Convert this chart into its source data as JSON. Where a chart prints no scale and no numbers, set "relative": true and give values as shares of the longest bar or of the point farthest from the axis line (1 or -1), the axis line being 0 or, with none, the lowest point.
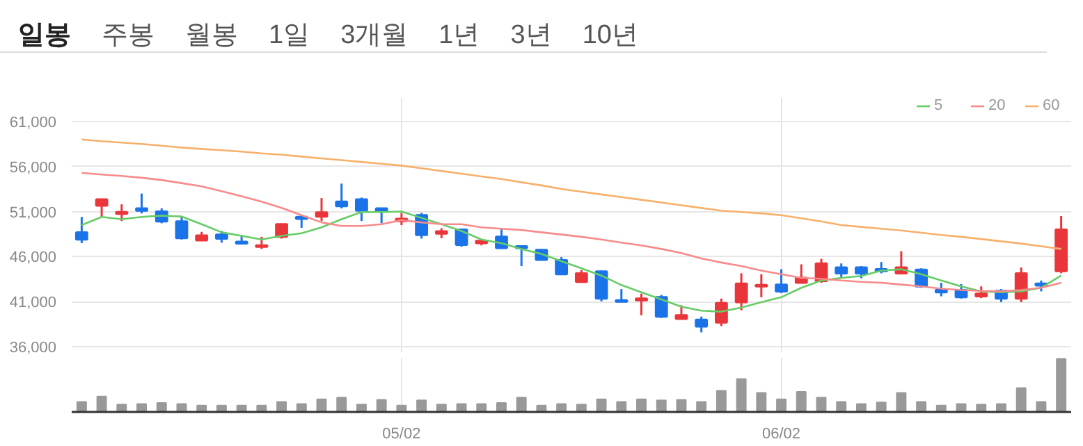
{
  "chart_data": [
    {
      "type": "candlestick",
      "annotations": [
        "일봉",
        "주봉",
        "월봉",
        "1일",
        "3개월",
        "1년",
        "3년",
        "10년"
      ],
      "ohlc": [
        [
          48700,
          50400,
          47500,
          47900
        ],
        [
          51650,
          52350,
          50400,
          52350
        ],
        [
          50750,
          51800,
          49950,
          50950
        ],
        [
          51350,
          53000,
          50800,
          51100
        ],
        [
          51000,
          51350,
          49700,
          49900
        ],
        [
          49900,
          50400,
          47900,
          48050
        ],
        [
          47800,
          48750,
          47800,
          48350
        ],
        [
          48450,
          48850,
          47550,
          48000
        ],
        [
          47650,
          48400,
          47450,
          47450
        ],
        [
          47100,
          48200,
          46850,
          47250
        ],
        [
          48200,
          49650,
          48000,
          49600
        ],
        [
          50400,
          50600,
          49200,
          50200
        ],
        [
          50450,
          52500,
          49950,
          50900
        ],
        [
          52100,
          54100,
          51350,
          51600
        ],
        [
          52350,
          52550,
          49950,
          51100
        ],
        [
          51350,
          51350,
          49700,
          51050
        ],
        [
          49950,
          50850,
          49500,
          50200
        ],
        [
          50600,
          50850,
          48000,
          48400
        ],
        [
          48550,
          49150,
          48050,
          48800
        ],
        [
          49000,
          49100,
          47100,
          47300
        ],
        [
          47500,
          47750,
          47250,
          47750
        ],
        [
          48200,
          49150,
          46950,
          46950
        ],
        [
          47150,
          47150,
          44950,
          46950
        ],
        [
          46750,
          46850,
          45650,
          45650
        ],
        [
          45600,
          45950,
          44050,
          44050
        ],
        [
          43200,
          44500,
          43100,
          44150
        ],
        [
          44350,
          44450,
          41050,
          41350
        ],
        [
          41150,
          42400,
          41000,
          41000
        ],
        [
          41150,
          41900,
          39500,
          41350
        ],
        [
          41500,
          41750,
          39200,
          39350
        ],
        [
          39100,
          40600,
          39100,
          39500
        ],
        [
          39000,
          39350,
          37600,
          38250
        ],
        [
          38700,
          41350,
          38300,
          40850
        ],
        [
          40950,
          44150,
          40050,
          43000
        ],
        [
          42700,
          44050,
          41500,
          42850
        ],
        [
          42900,
          44600,
          41950,
          42150
        ],
        [
          43100,
          45150,
          43100,
          43650
        ],
        [
          43300,
          45750,
          43100,
          45250
        ],
        [
          44800,
          45250,
          43600,
          44150
        ],
        [
          44800,
          44950,
          43600,
          44150
        ],
        [
          44600,
          45400,
          44150,
          44400
        ],
        [
          44150,
          46600,
          44150,
          44800
        ],
        [
          44550,
          44700,
          42550,
          42700
        ],
        [
          42300,
          43100,
          41600,
          42050
        ],
        [
          42300,
          42950,
          41350,
          41500
        ],
        [
          41600,
          42700,
          41400,
          41900
        ],
        [
          42200,
          42400,
          40950,
          41350
        ],
        [
          41350,
          44800,
          40950,
          44150
        ],
        [
          43000,
          43350,
          42150,
          42800
        ],
        [
          44400,
          50500,
          44150,
          49000
        ]
      ],
      "colors": [
        "#1a73e8",
        "#e8363b",
        "#e8363b",
        "#1a73e8",
        "#1a73e8",
        "#1a73e8",
        "#e8363b",
        "#1a73e8",
        "#1a73e8",
        "#e8363b",
        "#e8363b",
        "#1a73e8",
        "#e8363b",
        "#1a73e8",
        "#1a73e8",
        "#1a73e8",
        "#e8363b",
        "#1a73e8",
        "#e8363b",
        "#1a73e8",
        "#e8363b",
        "#1a73e8",
        "#1a73e8",
        "#1a73e8",
        "#1a73e8",
        "#e8363b",
        "#1a73e8",
        "#1a73e8",
        "#e8363b",
        "#1a73e8",
        "#e8363b",
        "#1a73e8",
        "#e8363b",
        "#e8363b",
        "#e8363b",
        "#1a73e8",
        "#e8363b",
        "#e8363b",
        "#1a73e8",
        "#1a73e8",
        "#1a73e8",
        "#e8363b",
        "#1a73e8",
        "#1a73e8",
        "#1a73e8",
        "#e8363b",
        "#1a73e8",
        "#e8363b",
        "#1a73e8",
        "#e8363b"
      ],
      "series": [
        {
          "name": "5",
          "type": "line",
          "color": "#66cc66",
          "values": [
            49500,
            50400,
            50150,
            50400,
            50550,
            50450,
            49600,
            48700,
            48300,
            47900,
            48300,
            48600,
            49250,
            50150,
            50950,
            50950,
            51000,
            50300,
            49600,
            48850,
            47900,
            47500,
            46850,
            46300,
            45500,
            44700,
            43900,
            42850,
            42050,
            41250,
            40450,
            40000,
            39900,
            40350,
            40950,
            41500,
            42550,
            43350,
            43650,
            43850,
            44450,
            44600,
            44050,
            43350,
            42700,
            42150,
            42050,
            42150,
            42550,
            43900
          ]
        },
        {
          "name": "20",
          "type": "line",
          "color": "#f78a8a",
          "values": [
            55300,
            55100,
            54950,
            54750,
            54500,
            54150,
            53800,
            53250,
            52700,
            52100,
            51400,
            50600,
            49800,
            49400,
            49400,
            49600,
            50050,
            49800,
            49600,
            49600,
            49250,
            49100,
            48950,
            48700,
            48450,
            48200,
            47900,
            47550,
            47250,
            46850,
            46400,
            45800,
            45350,
            44950,
            44450,
            44050,
            43650,
            43550,
            43350,
            43200,
            43100,
            42900,
            42700,
            42450,
            42300,
            42200,
            42150,
            42300,
            42550,
            43100
          ]
        },
        {
          "name": "60",
          "type": "line",
          "color": "#f7b06a",
          "values": [
            59000,
            58800,
            58650,
            58500,
            58300,
            58100,
            57950,
            57800,
            57650,
            57450,
            57300,
            57100,
            56900,
            56700,
            56500,
            56300,
            56100,
            55800,
            55500,
            55200,
            54900,
            54600,
            54250,
            53900,
            53500,
            53200,
            52900,
            52600,
            52300,
            52000,
            51700,
            51400,
            51100,
            50950,
            50800,
            50600,
            50250,
            49900,
            49500,
            49300,
            49100,
            48900,
            48650,
            48400,
            48200,
            47950,
            47700,
            47450,
            47150,
            46850
          ]
        }
      ],
      "ylim": [
        35400,
        63600
      ],
      "yticks": [
        {
          "value": 36000,
          "label": "36,000"
        },
        {
          "value": 41000,
          "label": "41,000"
        },
        {
          "value": 46000,
          "label": "46,000"
        },
        {
          "value": 51000,
          "label": "51,000"
        },
        {
          "value": 56000,
          "label": "56,000"
        },
        {
          "value": 61000,
          "label": "61,000"
        }
      ],
      "grid": true,
      "legend": "top right",
      "tick_labels": "y"
    },
    {
      "type": "bar",
      "relative": true,
      "color": "#999999",
      "grid": "x",
      "tick_labels": "x",
      "categories": [
        null,
        null,
        null,
        null,
        null,
        null,
        null,
        null,
        null,
        null,
        null,
        null,
        null,
        null,
        null,
        null,
        "05/02",
        null,
        null,
        null,
        null,
        null,
        null,
        null,
        null,
        null,
        null,
        null,
        null,
        null,
        null,
        null,
        null,
        null,
        null,
        "06/02",
        null,
        null,
        null,
        null,
        null,
        null,
        null,
        null,
        null,
        null,
        null,
        null,
        null,
        null
      ],
      "values": [
        0.19,
        0.29,
        0.14,
        0.15,
        0.17,
        0.15,
        0.12,
        0.12,
        0.12,
        0.12,
        0.19,
        0.15,
        0.24,
        0.27,
        0.14,
        0.23,
        0.12,
        0.22,
        0.14,
        0.15,
        0.15,
        0.17,
        0.27,
        0.12,
        0.15,
        0.14,
        0.24,
        0.19,
        0.24,
        0.22,
        0.23,
        0.19,
        0.4,
        0.62,
        0.36,
        0.24,
        0.38,
        0.27,
        0.19,
        0.15,
        0.18,
        0.36,
        0.19,
        0.12,
        0.15,
        0.14,
        0.15,
        0.45,
        0.19,
        1
      ]
    }
  ]
}
